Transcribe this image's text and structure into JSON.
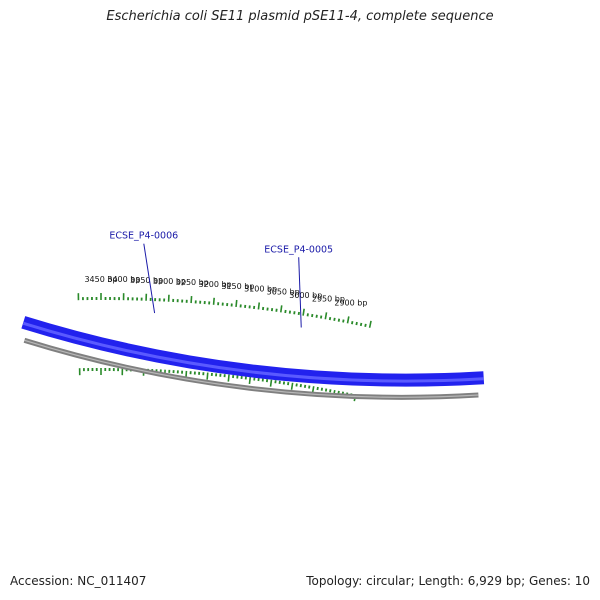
{
  "title": "Escherichia coli SE11 plasmid pSE11-4, complete sequence",
  "footer": {
    "accession": "Accession: NC_011407",
    "summary": "Topology: circular; Length: 6,929 bp; Genes: 10"
  },
  "colors": {
    "forward_strand": "#2222ee",
    "reverse_strand": "#808080",
    "ticks": "#2a8a2a",
    "gene_label": "#1a1aa8"
  },
  "ticks": [
    {
      "pos": 2900,
      "label": "2900 bp"
    },
    {
      "pos": 2950,
      "label": "2950 bp"
    },
    {
      "pos": 3000,
      "label": "3000 bp"
    },
    {
      "pos": 3050,
      "label": "3050 bp"
    },
    {
      "pos": 3100,
      "label": "3100 bp"
    },
    {
      "pos": 3150,
      "label": "3150 bp"
    },
    {
      "pos": 3200,
      "label": "3200 bp"
    },
    {
      "pos": 3250,
      "label": "3250 bp"
    },
    {
      "pos": 3300,
      "label": "3300 bp"
    },
    {
      "pos": 3350,
      "label": "3350 bp"
    },
    {
      "pos": 3400,
      "label": "3400 bp"
    },
    {
      "pos": 3450,
      "label": "3450 bp"
    }
  ],
  "genes": [
    {
      "name": "ECSE_P4-0005",
      "strand": "forward",
      "label_pos": 3000
    },
    {
      "name": "ECSE_P4-0006",
      "strand": "forward",
      "label_pos": 3330
    }
  ]
}
